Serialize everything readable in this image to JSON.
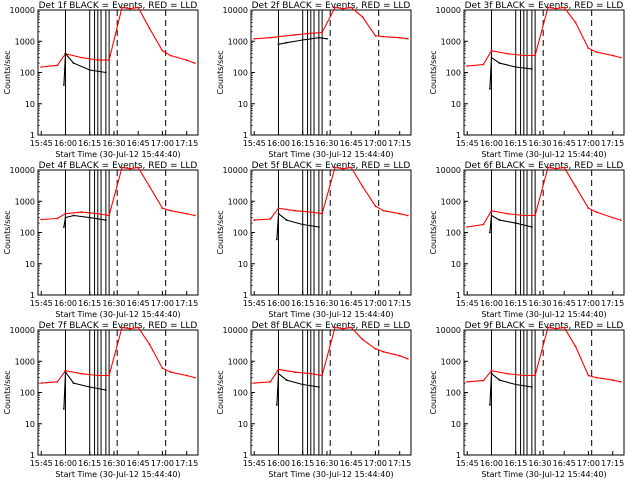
{
  "colors": {
    "events": "#000000",
    "lld": "#ff0000",
    "axis": "#000000",
    "background": "#ffffff"
  },
  "shared": {
    "x_ticks": [
      "15:45",
      "16:00",
      "16:15",
      "16:30",
      "16:45",
      "17:00",
      "17:15"
    ],
    "y_ticks": [
      "1",
      "10",
      "100",
      "1000",
      "10000"
    ],
    "ylabel": "Counts/sec",
    "xlabel": "Start Time (30-Jul-12 15:44:40)"
  },
  "chart_data": [
    {
      "type": "line",
      "title": "Det 1f BLACK = Events, RED = LLD",
      "xlabel": "Start Time (30-Jul-12 15:44:40)",
      "ylabel": "Counts/sec",
      "ylim": [
        1,
        10000
      ],
      "y_scale": "log",
      "x_range": [
        "15:45",
        "17:22"
      ],
      "series": [
        {
          "color": "#ff0000",
          "x": [
            "15:45",
            "15:55",
            "16:00",
            "16:10",
            "16:20",
            "16:27",
            "16:35",
            "16:40",
            "16:45",
            "16:52",
            "17:00",
            "17:05",
            "17:15",
            "17:20"
          ],
          "values": [
            150,
            170,
            400,
            300,
            250,
            250,
            12000,
            11000,
            12000,
            2600,
            500,
            350,
            250,
            200
          ]
        },
        {
          "color": "#000000",
          "x": [
            "15:59",
            "16:00",
            "16:05",
            "16:15",
            "16:25"
          ],
          "values": [
            40,
            400,
            200,
            120,
            100
          ]
        }
      ]
    },
    {
      "type": "line",
      "title": "Det 2f BLACK = Events, RED = LLD",
      "xlabel": "Start Time (30-Jul-12 15:44:40)",
      "ylabel": "Counts/sec",
      "ylim": [
        1,
        10000
      ],
      "y_scale": "log",
      "x_range": [
        "15:45",
        "17:22"
      ],
      "series": [
        {
          "color": "#ff0000",
          "x": [
            "15:45",
            "15:55",
            "16:00",
            "16:10",
            "16:20",
            "16:27",
            "16:35",
            "16:40",
            "16:45",
            "16:52",
            "17:00",
            "17:05",
            "17:15",
            "17:20"
          ],
          "values": [
            1200,
            1300,
            1400,
            1600,
            1800,
            1900,
            12000,
            11000,
            12000,
            6000,
            1500,
            1400,
            1300,
            1200
          ]
        },
        {
          "color": "#000000",
          "x": [
            "16:00",
            "16:05",
            "16:15",
            "16:25",
            "16:30"
          ],
          "values": [
            800,
            900,
            1100,
            1300,
            1200
          ]
        }
      ]
    },
    {
      "type": "line",
      "title": "Det 3f BLACK = Events, RED = LLD",
      "xlabel": "Start Time (30-Jul-12 15:44:40)",
      "ylabel": "Counts/sec",
      "ylim": [
        1,
        10000
      ],
      "y_scale": "log",
      "x_range": [
        "15:45",
        "17:22"
      ],
      "series": [
        {
          "color": "#ff0000",
          "x": [
            "15:45",
            "15:55",
            "16:00",
            "16:10",
            "16:20",
            "16:27",
            "16:35",
            "16:40",
            "16:45",
            "16:52",
            "17:00",
            "17:05",
            "17:15",
            "17:20"
          ],
          "values": [
            160,
            180,
            500,
            400,
            350,
            350,
            12000,
            11000,
            12000,
            4000,
            600,
            450,
            350,
            300
          ]
        },
        {
          "color": "#000000",
          "x": [
            "15:59",
            "16:00",
            "16:05",
            "16:15",
            "16:25"
          ],
          "values": [
            30,
            300,
            200,
            150,
            130
          ]
        }
      ]
    },
    {
      "type": "line",
      "title": "Det 4f BLACK = Events, RED = LLD",
      "xlabel": "Start Time (30-Jul-12 15:44:40)",
      "ylabel": "Counts/sec",
      "ylim": [
        1,
        10000
      ],
      "y_scale": "log",
      "x_range": [
        "15:45",
        "17:22"
      ],
      "series": [
        {
          "color": "#ff0000",
          "x": [
            "15:45",
            "15:55",
            "16:00",
            "16:10",
            "16:20",
            "16:27",
            "16:35",
            "16:40",
            "16:45",
            "16:52",
            "17:00",
            "17:05",
            "17:15",
            "17:20"
          ],
          "values": [
            260,
            280,
            400,
            450,
            400,
            350,
            12000,
            11000,
            12000,
            3000,
            600,
            500,
            400,
            350
          ]
        },
        {
          "color": "#000000",
          "x": [
            "15:59",
            "16:00",
            "16:05",
            "16:15",
            "16:25"
          ],
          "values": [
            150,
            300,
            350,
            300,
            250
          ]
        }
      ]
    },
    {
      "type": "line",
      "title": "Det 5f BLACK = Events, RED = LLD",
      "xlabel": "Start Time (30-Jul-12 15:44:40)",
      "ylabel": "Counts/sec",
      "ylim": [
        1,
        10000
      ],
      "y_scale": "log",
      "x_range": [
        "15:45",
        "17:22"
      ],
      "series": [
        {
          "color": "#ff0000",
          "x": [
            "15:45",
            "15:55",
            "16:00",
            "16:10",
            "16:20",
            "16:27",
            "16:35",
            "16:40",
            "16:45",
            "16:52",
            "17:00",
            "17:05",
            "17:15",
            "17:20"
          ],
          "values": [
            250,
            270,
            600,
            500,
            450,
            400,
            12000,
            11000,
            12000,
            3000,
            700,
            500,
            400,
            350
          ]
        },
        {
          "color": "#000000",
          "x": [
            "15:59",
            "16:00",
            "16:05",
            "16:15",
            "16:25"
          ],
          "values": [
            60,
            400,
            250,
            180,
            150
          ]
        }
      ]
    },
    {
      "type": "line",
      "title": "Det 6f BLACK = Events, RED = LLD",
      "xlabel": "Start Time (30-Jul-12 15:44:40)",
      "ylabel": "Counts/sec",
      "ylim": [
        1,
        10000
      ],
      "y_scale": "log",
      "x_range": [
        "15:45",
        "17:22"
      ],
      "series": [
        {
          "color": "#ff0000",
          "x": [
            "15:45",
            "15:55",
            "16:00",
            "16:10",
            "16:20",
            "16:27",
            "16:35",
            "16:40",
            "16:45",
            "16:52",
            "17:00",
            "17:05",
            "17:15",
            "17:20"
          ],
          "values": [
            150,
            180,
            500,
            400,
            350,
            350,
            12000,
            11000,
            12000,
            3000,
            600,
            450,
            300,
            250
          ]
        },
        {
          "color": "#000000",
          "x": [
            "15:59",
            "16:00",
            "16:05",
            "16:15",
            "16:25"
          ],
          "values": [
            100,
            350,
            250,
            200,
            150
          ]
        }
      ]
    },
    {
      "type": "line",
      "title": "Det 7f BLACK = Events, RED = LLD",
      "xlabel": "Start Time (30-Jul-12 15:44:40)",
      "ylabel": "Counts/sec",
      "ylim": [
        1,
        10000
      ],
      "y_scale": "log",
      "x_range": [
        "15:45",
        "17:22"
      ],
      "series": [
        {
          "color": "#ff0000",
          "x": [
            "15:45",
            "15:55",
            "16:00",
            "16:10",
            "16:20",
            "16:27",
            "16:35",
            "16:40",
            "16:45",
            "16:52",
            "17:00",
            "17:05",
            "17:15",
            "17:20"
          ],
          "values": [
            200,
            220,
            500,
            400,
            350,
            350,
            12000,
            11000,
            12000,
            3500,
            600,
            450,
            350,
            300
          ]
        },
        {
          "color": "#000000",
          "x": [
            "15:59",
            "16:00",
            "16:05",
            "16:15",
            "16:25"
          ],
          "values": [
            30,
            450,
            200,
            150,
            120
          ]
        }
      ]
    },
    {
      "type": "line",
      "title": "Det 8f BLACK = Events, RED = LLD",
      "xlabel": "Start Time (30-Jul-12 15:44:40)",
      "ylabel": "Counts/sec",
      "ylim": [
        1,
        10000
      ],
      "y_scale": "log",
      "x_range": [
        "15:45",
        "17:22"
      ],
      "series": [
        {
          "color": "#ff0000",
          "x": [
            "15:45",
            "15:55",
            "16:00",
            "16:10",
            "16:20",
            "16:27",
            "16:35",
            "16:40",
            "16:45",
            "16:52",
            "17:00",
            "17:05",
            "17:15",
            "17:20"
          ],
          "values": [
            200,
            220,
            550,
            450,
            400,
            350,
            12000,
            11000,
            12000,
            5000,
            2500,
            2000,
            1500,
            1200
          ]
        },
        {
          "color": "#000000",
          "x": [
            "15:59",
            "16:00",
            "16:05",
            "16:15",
            "16:25"
          ],
          "values": [
            40,
            400,
            250,
            180,
            150
          ]
        }
      ]
    },
    {
      "type": "line",
      "title": "Det 9f BLACK = Events, RED = LLD",
      "xlabel": "Start Time (30-Jul-12 15:44:40)",
      "ylabel": "Counts/sec",
      "ylim": [
        1,
        10000
      ],
      "y_scale": "log",
      "x_range": [
        "15:45",
        "17:22"
      ],
      "series": [
        {
          "color": "#ff0000",
          "x": [
            "15:45",
            "15:55",
            "16:00",
            "16:10",
            "16:20",
            "16:27",
            "16:35",
            "16:40",
            "16:45",
            "16:52",
            "17:00",
            "17:05",
            "17:15",
            "17:20"
          ],
          "values": [
            220,
            240,
            500,
            400,
            350,
            350,
            12000,
            11000,
            12000,
            3000,
            350,
            300,
            250,
            220
          ]
        },
        {
          "color": "#000000",
          "x": [
            "15:59",
            "16:00",
            "16:05",
            "16:15",
            "16:25"
          ],
          "values": [
            40,
            400,
            250,
            180,
            150
          ]
        }
      ]
    }
  ]
}
